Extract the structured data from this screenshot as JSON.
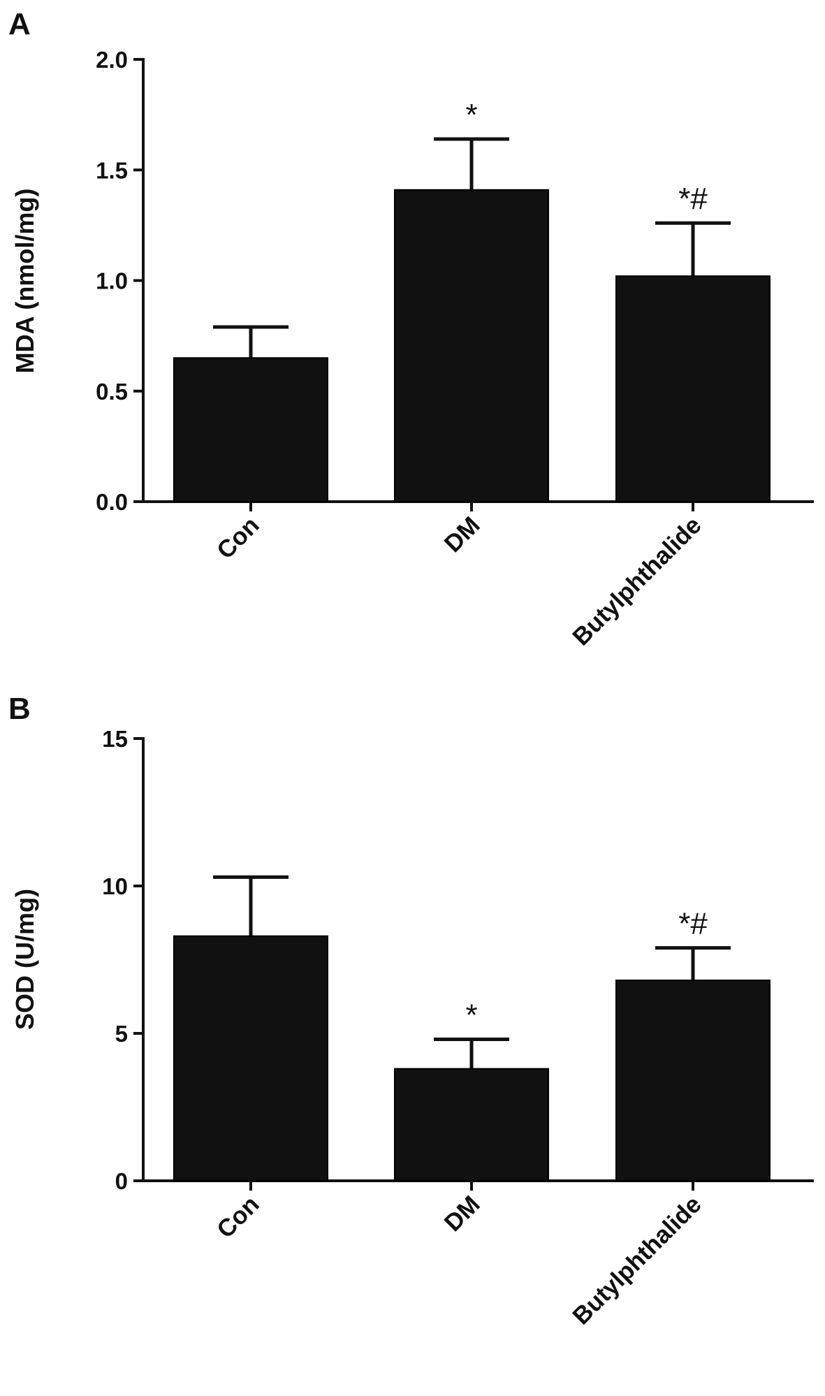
{
  "panels": [
    {
      "letter": "A"
    },
    {
      "letter": "B"
    }
  ],
  "chart_data": [
    {
      "type": "bar",
      "categories": [
        "Con",
        "DM",
        "Butylphthalide"
      ],
      "values": [
        0.65,
        1.41,
        1.02
      ],
      "errors": [
        0.14,
        0.23,
        0.24
      ],
      "annotations": [
        "",
        "*",
        "*#"
      ],
      "ylabel": "MDA (nmol/mg)",
      "xlabel": "",
      "ylim": [
        0,
        2.0
      ],
      "yticks": [
        0.0,
        0.5,
        1.0,
        1.5,
        2.0
      ],
      "ytick_labels": [
        "0.0",
        "0.5",
        "1.0",
        "1.5",
        "2.0"
      ],
      "bar_color": "#111111"
    },
    {
      "type": "bar",
      "categories": [
        "Con",
        "DM",
        "Butylphthalide"
      ],
      "values": [
        8.3,
        3.8,
        6.8
      ],
      "errors": [
        2.0,
        1.0,
        1.1
      ],
      "annotations": [
        "",
        "*",
        "*#"
      ],
      "ylabel": "SOD (U/mg)",
      "xlabel": "",
      "ylim": [
        0,
        15
      ],
      "yticks": [
        0,
        5,
        10,
        15
      ],
      "ytick_labels": [
        "0",
        "5",
        "10",
        "15"
      ],
      "bar_color": "#111111"
    }
  ]
}
